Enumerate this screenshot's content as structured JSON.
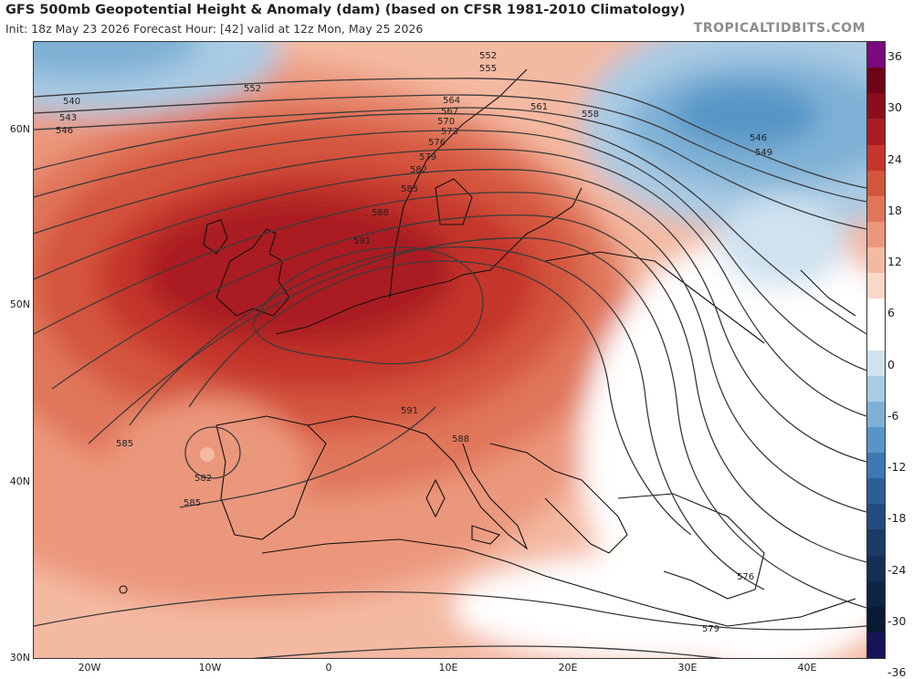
{
  "header": {
    "title": "GFS 500mb Geopotential Height & Anomaly (dam) (based on CFSR 1981-2010 Climatology)",
    "subtitle": "Init: 18z May 23 2026   Forecast Hour: [42]   valid at 12z Mon, May 25 2026",
    "brand": "TROPICALTIDBITS.COM"
  },
  "axes": {
    "lat": [
      "60N",
      "50N",
      "40N",
      "30N"
    ],
    "lon": [
      "20W",
      "10W",
      "0",
      "10E",
      "20E",
      "30E",
      "40E"
    ]
  },
  "colorbar": {
    "ticks": [
      "36",
      "30",
      "24",
      "18",
      "12",
      "6",
      "0",
      "-6",
      "-12",
      "-18",
      "-24",
      "-30",
      "-36"
    ],
    "colors": [
      "#7a0a7e",
      "#6e0416",
      "#8c0d1b",
      "#aa1c24",
      "#c4352b",
      "#d4553d",
      "#e0765a",
      "#eb977c",
      "#f4b9a1",
      "#fad8c7",
      "#ffffff",
      "#ffffff",
      "#cfe2ef",
      "#a9cbe3",
      "#7fb1d6",
      "#5795c6",
      "#3d79b2",
      "#2d5f97",
      "#224c7e",
      "#1a3c67",
      "#142f53",
      "#0f2342",
      "#0b1a34",
      "#17145a"
    ]
  },
  "contours": {
    "labels": [
      "552",
      "555",
      "540",
      "543",
      "546",
      "552",
      "564",
      "567",
      "570",
      "573",
      "576",
      "579",
      "582",
      "585",
      "588",
      "591",
      "561",
      "558",
      "546",
      "549",
      "585",
      "582",
      "585",
      "591",
      "588",
      "576",
      "579"
    ]
  }
}
